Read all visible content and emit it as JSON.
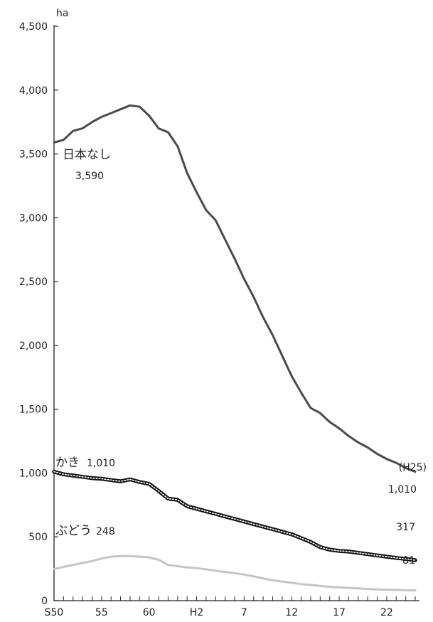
{
  "chart_data": {
    "type": "line",
    "ylabel": "ha",
    "ylim": [
      0,
      4500
    ],
    "grid": false,
    "yticks": [
      {
        "value": 0,
        "label": "0"
      },
      {
        "value": 500,
        "label": "500"
      },
      {
        "value": 1000,
        "label": "1,000"
      },
      {
        "value": 1500,
        "label": "1,500"
      },
      {
        "value": 2000,
        "label": "2,000"
      },
      {
        "value": 2500,
        "label": "2,500"
      },
      {
        "value": 3000,
        "label": "3,000"
      },
      {
        "value": 3500,
        "label": "3,500"
      },
      {
        "value": 4000,
        "label": "4,000"
      },
      {
        "value": 4500,
        "label": "4,500"
      }
    ],
    "x": [
      "S50",
      "S51",
      "S52",
      "S53",
      "S54",
      "S55",
      "S56",
      "S57",
      "S58",
      "S59",
      "S60",
      "S61",
      "S62",
      "S63",
      "H1",
      "H2",
      "H3",
      "H4",
      "H5",
      "H6",
      "H7",
      "H8",
      "H9",
      "H10",
      "H11",
      "H12",
      "H13",
      "H14",
      "H15",
      "H16",
      "H17",
      "H18",
      "H19",
      "H20",
      "H21",
      "H22",
      "H23",
      "H24",
      "H25"
    ],
    "xticks": [
      {
        "x": "S50",
        "label": "S50"
      },
      {
        "x": "S55",
        "label": "55"
      },
      {
        "x": "S60",
        "label": "60"
      },
      {
        "x": "H2",
        "label": "H2"
      },
      {
        "x": "H7",
        "label": "7"
      },
      {
        "x": "H12",
        "label": "12"
      },
      {
        "x": "H17",
        "label": "17"
      },
      {
        "x": "H22",
        "label": "22"
      }
    ],
    "end_label": "(H25)",
    "series": [
      {
        "name": "日本なし",
        "color": "#4a4a4a",
        "style": "solid",
        "start_value_label": "3,590",
        "end_value_label": "1,010",
        "values": [
          3590,
          3610,
          3680,
          3700,
          3750,
          3790,
          3820,
          3850,
          3880,
          3870,
          3800,
          3700,
          3670,
          3560,
          3350,
          3200,
          3060,
          2980,
          2830,
          2680,
          2520,
          2380,
          2220,
          2080,
          1920,
          1760,
          1630,
          1510,
          1470,
          1400,
          1350,
          1290,
          1240,
          1200,
          1150,
          1110,
          1080,
          1040,
          1010
        ]
      },
      {
        "name": "かき",
        "color": "#111111",
        "style": "beaded",
        "start_value_label": "1,010",
        "end_value_label": "317",
        "values": [
          1010,
          990,
          980,
          970,
          960,
          955,
          945,
          935,
          950,
          930,
          915,
          860,
          800,
          790,
          740,
          720,
          700,
          680,
          660,
          640,
          620,
          600,
          580,
          560,
          540,
          520,
          490,
          460,
          420,
          400,
          390,
          385,
          375,
          365,
          355,
          345,
          335,
          327,
          317
        ]
      },
      {
        "name": "ぶどう",
        "color": "#c4c4c4",
        "style": "solid",
        "start_value_label": "248",
        "end_value_label": "81",
        "values": [
          248,
          265,
          280,
          295,
          310,
          330,
          345,
          350,
          350,
          345,
          340,
          320,
          280,
          270,
          260,
          255,
          245,
          235,
          225,
          215,
          205,
          190,
          175,
          160,
          150,
          140,
          130,
          125,
          115,
          108,
          104,
          100,
          96,
          92,
          88,
          86,
          84,
          82,
          81
        ]
      }
    ]
  }
}
